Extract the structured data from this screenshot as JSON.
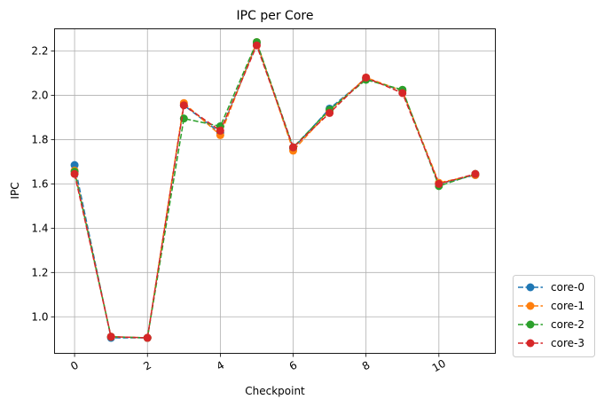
{
  "chart_data": {
    "type": "line",
    "title": "IPC per Core",
    "xlabel": "Checkpoint",
    "ylabel": "IPC",
    "xlim": [
      -0.55,
      11.55
    ],
    "ylim": [
      0.835,
      2.3
    ],
    "xticks": [
      0,
      2,
      4,
      6,
      8,
      10
    ],
    "xtick_labels": [
      "0",
      "2",
      "4",
      "6",
      "8",
      "10"
    ],
    "yticks": [
      1.0,
      1.2,
      1.4,
      1.6,
      1.8,
      2.0,
      2.2
    ],
    "ytick_labels": [
      "1.0",
      "1.2",
      "1.4",
      "1.6",
      "1.8",
      "2.0",
      "2.2"
    ],
    "grid": true,
    "legend_position": "outside-lower-right",
    "x": [
      0,
      1,
      2,
      3,
      4,
      5,
      6,
      7,
      8,
      9,
      10,
      11
    ],
    "series": [
      {
        "name": "core-0",
        "color": "#1f77b4",
        "values": [
          1.685,
          0.905,
          0.905,
          1.955,
          1.83,
          2.235,
          1.76,
          1.94,
          2.075,
          2.02,
          1.6,
          1.64
        ]
      },
      {
        "name": "core-1",
        "color": "#ff7f0e",
        "values": [
          1.66,
          0.91,
          0.905,
          1.965,
          1.82,
          2.24,
          1.75,
          1.93,
          2.08,
          2.02,
          1.605,
          1.64
        ]
      },
      {
        "name": "core-2",
        "color": "#2ca02c",
        "values": [
          1.655,
          0.91,
          0.905,
          1.895,
          1.86,
          2.24,
          1.765,
          1.935,
          2.07,
          2.025,
          1.59,
          1.645
        ]
      },
      {
        "name": "core-3",
        "color": "#d62728",
        "values": [
          1.645,
          0.91,
          0.905,
          1.955,
          1.84,
          2.225,
          1.765,
          1.92,
          2.08,
          2.01,
          1.6,
          1.645
        ]
      }
    ]
  }
}
